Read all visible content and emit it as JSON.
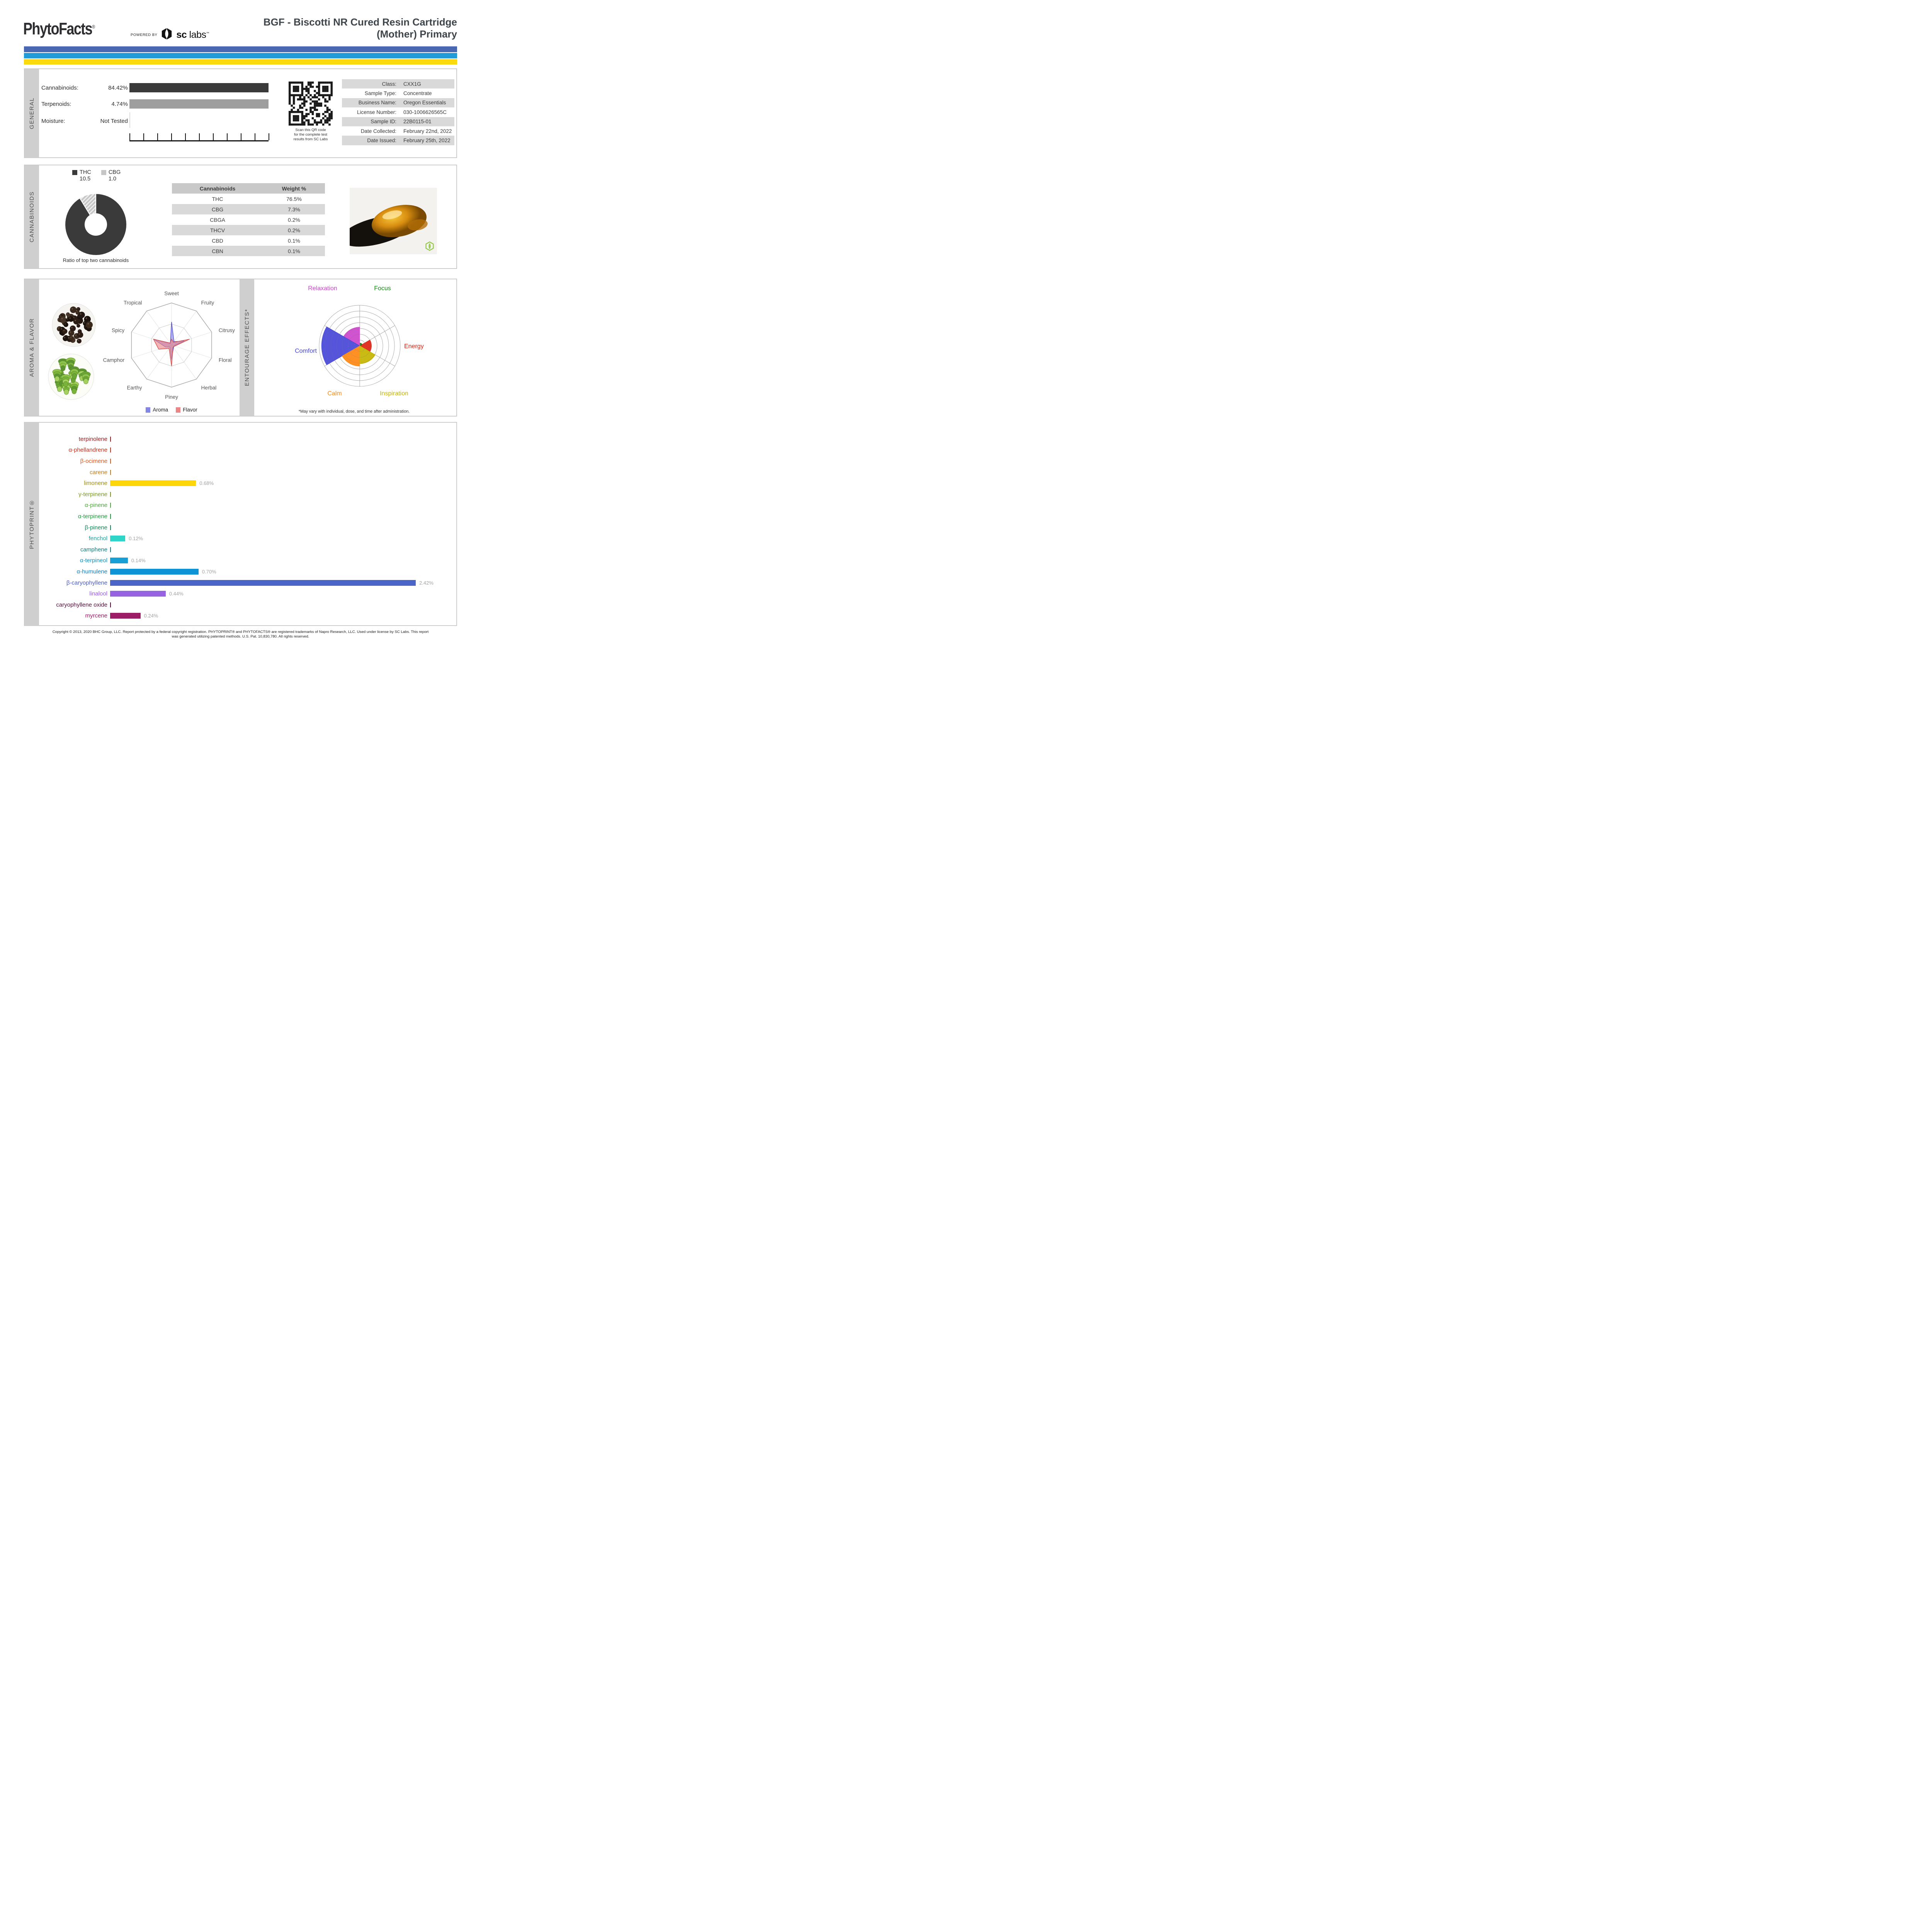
{
  "header": {
    "logo": "PhytoFacts",
    "logo_reg": "®",
    "powered_by": "POWERED BY",
    "lab_bold": "sc",
    "lab_light": "labs",
    "lab_tm": "™",
    "title_line1": "BGF - Biscotti NR Cured Resin Cartridge",
    "title_line2": "(Mother) Primary"
  },
  "accent_stripes": [
    "#4a67b1",
    "#219cd8",
    "#fbd90d"
  ],
  "general": {
    "section_label": "GENERAL",
    "stats": [
      {
        "label": "Cannabinoids:",
        "value": "84.42%",
        "bar_color": "#3a3a3a"
      },
      {
        "label": "Terpenoids:",
        "value": "4.74%",
        "bar_color": "#9e9e9e"
      },
      {
        "label": "Moisture:",
        "value": "Not Tested",
        "bar_color": null
      }
    ],
    "ruler_ticks": 11,
    "qr_caption_lines": [
      "Scan this QR code",
      "for the complete test",
      "results from SC Labs"
    ],
    "info_rows": [
      {
        "label": "Class:",
        "value": "CXX1G"
      },
      {
        "label": "Sample Type:",
        "value": "Concentrate"
      },
      {
        "label": "Business Name:",
        "value": "Oregon Essentials"
      },
      {
        "label": "License Number:",
        "value": "030-1006626565C"
      },
      {
        "label": "Sample ID:",
        "value": "22B0115-01"
      },
      {
        "label": "Date Collected:",
        "value": "February 22nd, 2022"
      },
      {
        "label": "Date Issued:",
        "value": "February 25th, 2022"
      }
    ]
  },
  "cannabinoids": {
    "section_label": "CANNABINOIDS",
    "chart_data": {
      "type": "pie",
      "caption": "Ratio of top two cannabinoids",
      "slices": [
        {
          "name": "THC",
          "value": 10.5,
          "color": "#3a3a3a",
          "hatched": false
        },
        {
          "name": "CBG",
          "value": 1.0,
          "color": "#c6c6c6",
          "hatched": true
        }
      ]
    },
    "table": {
      "headers": [
        "Cannabinoids",
        "Weight %"
      ],
      "rows": [
        [
          "THC",
          "76.5%"
        ],
        [
          "CBG",
          "7.3%"
        ],
        [
          "CBGA",
          "0.2%"
        ],
        [
          "THCV",
          "0.2%"
        ],
        [
          "CBD",
          "0.1%"
        ],
        [
          "CBN",
          "0.1%"
        ]
      ]
    }
  },
  "aroma_flavor": {
    "section_label": "AROMA & FLAVOR",
    "chart_data": {
      "type": "radar",
      "axes": [
        "Sweet",
        "Fruity",
        "Citrusy",
        "Floral",
        "Herbal",
        "Piney",
        "Earthy",
        "Camphor",
        "Spicy",
        "Tropical"
      ],
      "rings": [
        0.5,
        1.0
      ],
      "series": [
        {
          "name": "Aroma",
          "fill": "#8585e8",
          "stroke": "#5252d2",
          "values": [
            0.55,
            0.1,
            0.32,
            0.06,
            0.08,
            0.34,
            0.06,
            0.15,
            0.44,
            0.05
          ]
        },
        {
          "name": "Flavor",
          "fill": "#ec8585",
          "stroke": "#d24c4c",
          "values": [
            0.14,
            0.08,
            0.45,
            0.08,
            0.06,
            0.5,
            0.1,
            0.32,
            0.45,
            0.06
          ]
        }
      ]
    }
  },
  "entourage": {
    "section_label": "ENTOURAGE EFFECTS*",
    "footnote": "*May vary with individual, dose, and time after administration.",
    "chart_data": {
      "type": "polar-wedges",
      "rings": 7,
      "sectors": [
        {
          "name": "Energy",
          "color": "#dd2211",
          "value": 0.29,
          "center_angle": 0
        },
        {
          "name": "Focus",
          "color": "#118811",
          "value": 0.07,
          "center_angle": 60
        },
        {
          "name": "Relaxation",
          "color": "#cc44cc",
          "value": 0.46,
          "center_angle": 120
        },
        {
          "name": "Comfort",
          "color": "#4646d8",
          "value": 0.94,
          "center_angle": 180
        },
        {
          "name": "Calm",
          "color": "#ff8811",
          "value": 0.5,
          "center_angle": 240
        },
        {
          "name": "Inspiration",
          "color": "#c6b400",
          "value": 0.44,
          "center_angle": 300
        }
      ]
    }
  },
  "phytoprint": {
    "section_label": "PHYTOPRINT®",
    "chart_data": {
      "type": "bar",
      "unit": "%",
      "max": 2.42,
      "terpenes": [
        {
          "name": "terpinolene",
          "label_color": "#a51a1a",
          "bar_color": "#a51a1a",
          "value": 0,
          "display": ""
        },
        {
          "name": "α-phellandrene",
          "label_color": "#d2301d",
          "bar_color": "#d2301d",
          "value": 0,
          "display": ""
        },
        {
          "name": "β-ocimene",
          "label_color": "#e0571f",
          "bar_color": "#e0571f",
          "value": 0,
          "display": ""
        },
        {
          "name": "carene",
          "label_color": "#c77b1c",
          "bar_color": "#c77b1c",
          "value": 0,
          "display": ""
        },
        {
          "name": "limonene",
          "label_color": "#9d8d16",
          "bar_color": "#ffd60a",
          "value": 0.68,
          "display": "0.68%"
        },
        {
          "name": "γ-terpinene",
          "label_color": "#7a9a1f",
          "bar_color": "#7a9a1f",
          "value": 0,
          "display": ""
        },
        {
          "name": "α-pinene",
          "label_color": "#4fa83d",
          "bar_color": "#4fa83d",
          "value": 0,
          "display": ""
        },
        {
          "name": "α-terpinene",
          "label_color": "#1f9e3d",
          "bar_color": "#1f9e3d",
          "value": 0,
          "display": ""
        },
        {
          "name": "β-pinene",
          "label_color": "#0f8a56",
          "bar_color": "#0f8a56",
          "value": 0,
          "display": ""
        },
        {
          "name": "fenchol",
          "label_color": "#16a8a0",
          "bar_color": "#2fd6c8",
          "value": 0.12,
          "display": "0.12%"
        },
        {
          "name": "camphene",
          "label_color": "#157d7d",
          "bar_color": "#157d7d",
          "value": 0,
          "display": ""
        },
        {
          "name": "α-terpineol",
          "label_color": "#1693c6",
          "bar_color": "#189fd4",
          "value": 0.14,
          "display": "0.14%"
        },
        {
          "name": "α-humulene",
          "label_color": "#0f83c6",
          "bar_color": "#0e93d6",
          "value": 0.7,
          "display": "0.70%"
        },
        {
          "name": "β-caryophyllene",
          "label_color": "#4a5cc8",
          "bar_color": "#4a64c8",
          "value": 2.42,
          "display": "2.42%"
        },
        {
          "name": "linalool",
          "label_color": "#9a5ce8",
          "bar_color": "#9664e0",
          "value": 0.44,
          "display": "0.44%"
        },
        {
          "name": "caryophyllene oxide",
          "label_color": "#5c0a3c",
          "bar_color": "#5c0a3c",
          "value": 0,
          "display": ""
        },
        {
          "name": "myrcene",
          "label_color": "#9c1a68",
          "bar_color": "#9c1c66",
          "value": 0.24,
          "display": "0.24%"
        }
      ]
    }
  },
  "footer": {
    "line1": "Copyright © 2013, 2020 BHC Group, LLC. Report protected by a federal copyright registration. PHYTOPRINT® and PHYTOFACTS® are registered trademarks of Napro Research, LLC. Used under license by SC Labs. This report",
    "line2": "was generated utilizing patented methods. U.S. Pat. 10,830,780. All rights reserved."
  }
}
